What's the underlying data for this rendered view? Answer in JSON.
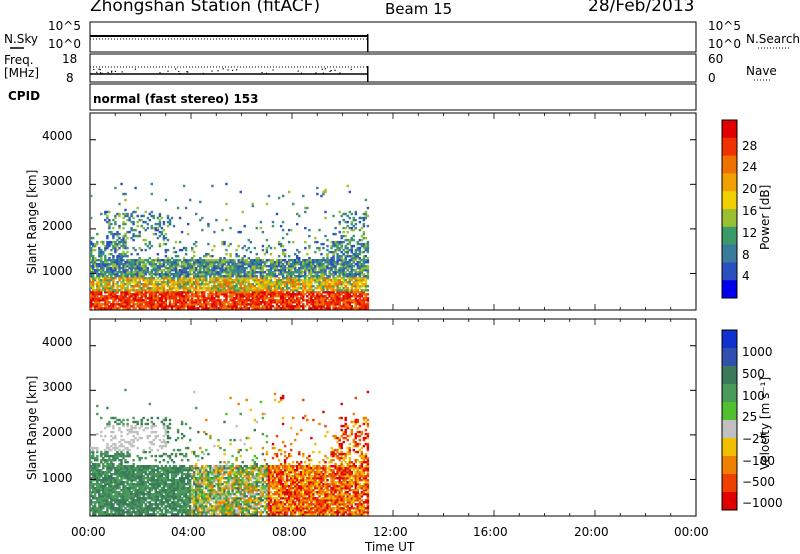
{
  "header": {
    "station": "Zhongshan Station (fitACF)",
    "beam": "Beam 15",
    "date": "28/Feb/2013"
  },
  "nsky_panel": {
    "left_label": "N.Sky",
    "right_label": "N.Search",
    "left_ticks": [
      "10^5",
      "10^0"
    ],
    "right_ticks": [
      "10^5",
      "10^0"
    ]
  },
  "freq_panel": {
    "left_label_1": "Freq.",
    "left_label_2": "[MHz]",
    "right_label": "Nave",
    "left_ticks": [
      "18",
      "8"
    ],
    "right_ticks": [
      "60",
      "0"
    ]
  },
  "cpid_panel": {
    "label": "CPID",
    "value": "normal (fast stereo) 153"
  },
  "x_axis": {
    "label": "Time UT",
    "ticks": [
      "00:00",
      "04:00",
      "08:00",
      "12:00",
      "16:00",
      "20:00",
      "00:00"
    ]
  },
  "chart_data": [
    {
      "type": "heatmap",
      "name": "power",
      "ylabel": "Slant Range [km]",
      "ylim": [
        180,
        4600
      ],
      "yticks": [
        "1000",
        "2000",
        "3000",
        "4000"
      ],
      "xlim_hours": [
        0,
        24
      ],
      "data_extent_hours": [
        0,
        11
      ],
      "colorbar": {
        "label": "Power [dB]",
        "ticks": [
          "4",
          "8",
          "12",
          "16",
          "20",
          "24",
          "28"
        ],
        "colors": [
          "#0000ee",
          "#2a50c0",
          "#3a7a9a",
          "#3a9a6a",
          "#9ac030",
          "#f0d000",
          "#f0a000",
          "#f07000",
          "#f03000",
          "#e00000"
        ]
      }
    },
    {
      "type": "heatmap",
      "name": "velocity",
      "ylabel": "Slant Range [km]",
      "ylim": [
        180,
        4600
      ],
      "yticks": [
        "1000",
        "2000",
        "3000",
        "4000"
      ],
      "xlim_hours": [
        0,
        24
      ],
      "data_extent_hours": [
        0,
        11
      ],
      "colorbar": {
        "label": "Velocity [m s⁻¹]",
        "ticks": [
          "1000",
          "500",
          "100",
          "25",
          "−25",
          "−100",
          "−500",
          "−1000"
        ],
        "colors": [
          "#1030d0",
          "#3050b0",
          "#3a7a5a",
          "#4a9a5a",
          "#50c030",
          "#c0c0c0",
          "#f0c000",
          "#f08000",
          "#f04000",
          "#e00000"
        ]
      }
    }
  ]
}
